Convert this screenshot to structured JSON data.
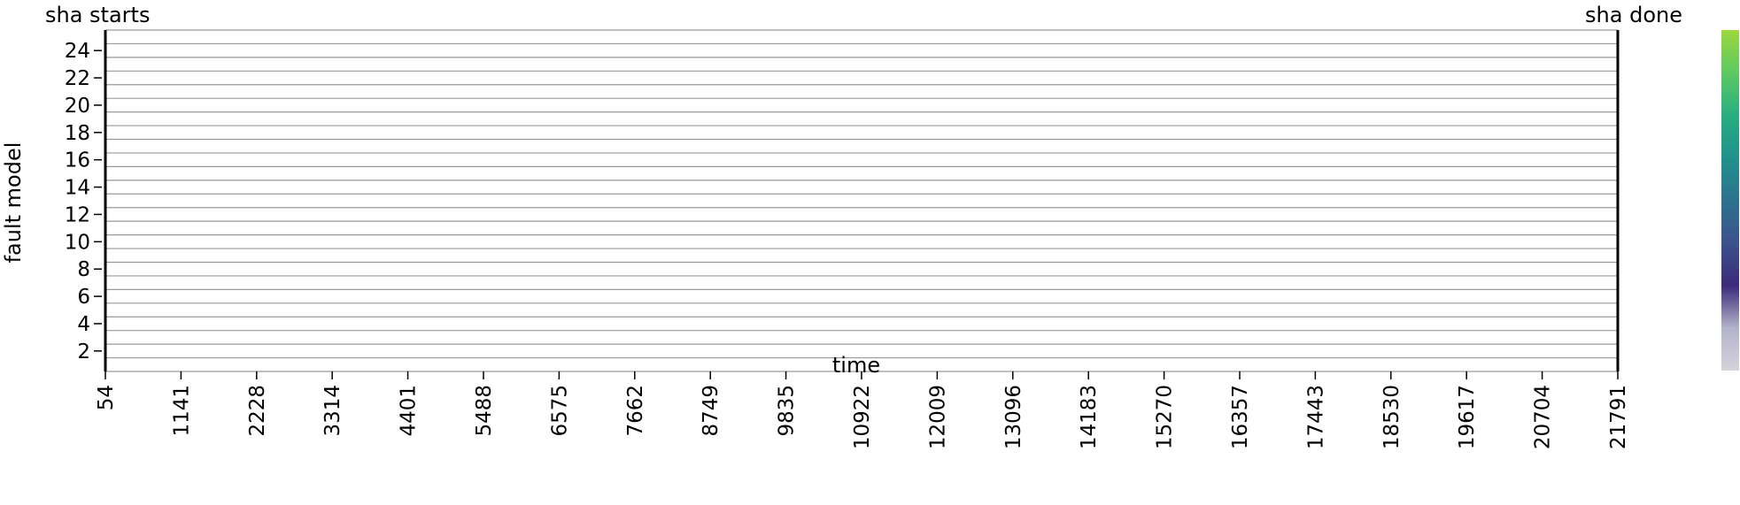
{
  "chart_data": {
    "type": "heatmap",
    "title": "",
    "xlabel": "time",
    "ylabel": "fault model",
    "x_ticks": [
      "54",
      "1141",
      "2228",
      "3314",
      "4401",
      "5488",
      "6575",
      "7662",
      "8749",
      "9835",
      "10922",
      "12009",
      "13096",
      "14183",
      "15270",
      "16357",
      "17443",
      "18530",
      "19617",
      "20704",
      "21791"
    ],
    "xlim": [
      54,
      21791
    ],
    "y_ticks": [
      "2",
      "4",
      "6",
      "8",
      "10",
      "12",
      "14",
      "16",
      "18",
      "20",
      "22",
      "24"
    ],
    "y_rows": [
      1,
      25
    ],
    "grid": true,
    "annotations": [
      {
        "label": "sha starts",
        "x": 54
      },
      {
        "label": "sha done",
        "x": 21791
      }
    ],
    "colorbar": {
      "colors": [
        "#d4d4dc",
        "#b3b3c9",
        "#3b2a7a",
        "#3b528b",
        "#2c728e",
        "#21918c",
        "#28ae80",
        "#5ec962",
        "#9bd83e"
      ],
      "tick_labels": []
    }
  }
}
